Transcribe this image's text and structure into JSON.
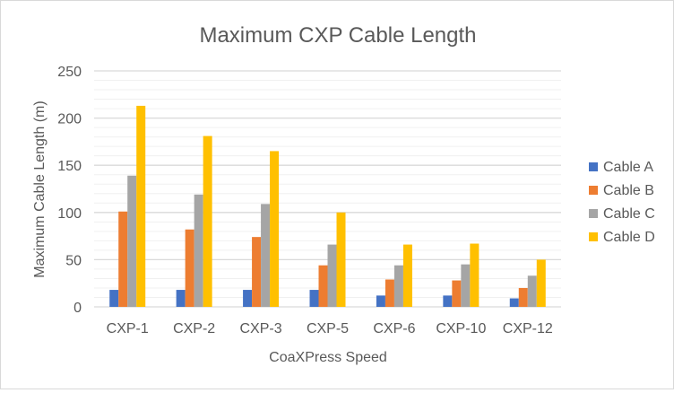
{
  "chart_data": {
    "type": "bar",
    "title": "Maximum CXP Cable Length",
    "xlabel": "CoaXPress Speed",
    "ylabel": "Maximum Cable Length (m)",
    "ylim": [
      0,
      250
    ],
    "yticks": [
      0,
      50,
      100,
      150,
      200,
      250
    ],
    "minor_grid_step": 10,
    "grid": true,
    "legend_position": "right",
    "categories": [
      "CXP-1",
      "CXP-2",
      "CXP-3",
      "CXP-5",
      "CXP-6",
      "CXP-10",
      "CXP-12"
    ],
    "series": [
      {
        "name": "Cable A",
        "color": "#4472c4",
        "values": [
          18,
          18,
          18,
          18,
          12,
          12,
          9
        ]
      },
      {
        "name": "Cable B",
        "color": "#ed7d31",
        "values": [
          101,
          82,
          74,
          44,
          29,
          28,
          20
        ]
      },
      {
        "name": "Cable C",
        "color": "#a5a5a5",
        "values": [
          139,
          119,
          109,
          66,
          44,
          45,
          33
        ]
      },
      {
        "name": "Cable D",
        "color": "#ffc000",
        "values": [
          213,
          181,
          165,
          100,
          66,
          67,
          50
        ]
      }
    ]
  }
}
